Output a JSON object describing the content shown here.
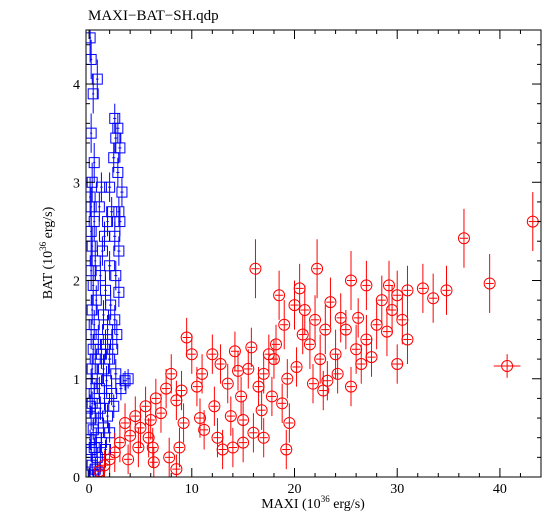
{
  "chart_data": {
    "type": "scatter",
    "title": "MAXI−BAT−SH.qdp",
    "xlabel": {
      "pre": "MAXI (10",
      "sup": "36",
      "post": " erg/s)"
    },
    "ylabel": {
      "pre": "BAT (10",
      "sup": "36",
      "post": " erg/s)"
    },
    "xlim": [
      -0.3,
      44
    ],
    "ylim": [
      0,
      4.55
    ],
    "x_ticks": [
      0,
      10,
      20,
      30,
      40
    ],
    "y_ticks": [
      0,
      1,
      2,
      3,
      4
    ],
    "grid": false,
    "legend": "none",
    "series": [
      {
        "marker": "square",
        "color": "#0000ff",
        "points": [
          [
            0.1,
            4.47,
            0.1,
            0.25
          ],
          [
            0.2,
            4.25,
            0.1,
            0.2
          ],
          [
            0.8,
            4.05,
            0.12,
            0.2
          ],
          [
            0.4,
            3.9,
            0.1,
            0.2
          ],
          [
            0.2,
            3.5,
            0.1,
            0.2
          ],
          [
            2.5,
            3.65,
            0.15,
            0.15
          ],
          [
            2.8,
            3.55,
            0.15,
            0.15
          ],
          [
            2.6,
            3.45,
            0.15,
            0.15
          ],
          [
            3.0,
            3.35,
            0.15,
            0.15
          ],
          [
            2.4,
            3.25,
            0.15,
            0.15
          ],
          [
            2.8,
            3.1,
            0.15,
            0.15
          ],
          [
            0.5,
            3.2,
            0.1,
            0.2
          ],
          [
            0.3,
            3.0,
            0.1,
            0.2
          ],
          [
            1.2,
            2.95,
            0.12,
            0.15
          ],
          [
            2.0,
            2.95,
            0.15,
            0.15
          ],
          [
            3.2,
            2.9,
            0.15,
            0.15
          ],
          [
            0.1,
            2.85,
            0.1,
            0.2
          ],
          [
            0.2,
            2.75,
            0.1,
            0.2
          ],
          [
            1.0,
            2.75,
            0.12,
            0.15
          ],
          [
            2.2,
            2.7,
            0.15,
            0.15
          ],
          [
            2.9,
            2.7,
            0.15,
            0.15
          ],
          [
            0.5,
            2.6,
            0.1,
            0.2
          ],
          [
            1.8,
            2.6,
            0.12,
            0.15
          ],
          [
            3.0,
            2.6,
            0.15,
            0.15
          ],
          [
            0.2,
            2.5,
            0.1,
            0.2
          ],
          [
            1.5,
            2.45,
            0.12,
            0.15
          ],
          [
            2.5,
            2.45,
            0.15,
            0.15
          ],
          [
            0.3,
            2.35,
            0.1,
            0.2
          ],
          [
            1.3,
            2.3,
            0.12,
            0.15
          ],
          [
            2.9,
            2.3,
            0.15,
            0.15
          ],
          [
            0.6,
            2.2,
            0.1,
            0.2
          ],
          [
            2.0,
            2.15,
            0.15,
            0.15
          ],
          [
            0.2,
            2.1,
            0.1,
            0.2
          ],
          [
            1.1,
            2.05,
            0.12,
            0.15
          ],
          [
            2.6,
            2.05,
            0.15,
            0.15
          ],
          [
            0.4,
            1.95,
            0.1,
            0.2
          ],
          [
            1.6,
            1.9,
            0.12,
            0.15
          ],
          [
            2.9,
            1.88,
            0.15,
            0.15
          ],
          [
            0.7,
            1.8,
            0.1,
            0.15
          ],
          [
            2.1,
            1.75,
            0.15,
            0.15
          ],
          [
            0.3,
            1.7,
            0.1,
            0.15
          ],
          [
            1.4,
            1.65,
            0.12,
            0.15
          ],
          [
            2.5,
            1.6,
            0.15,
            0.15
          ],
          [
            0.5,
            1.55,
            0.1,
            0.15
          ],
          [
            1.8,
            1.5,
            0.12,
            0.15
          ],
          [
            0.2,
            1.45,
            0.1,
            0.15
          ],
          [
            2.7,
            1.45,
            0.15,
            0.15
          ],
          [
            0.9,
            1.4,
            0.12,
            0.15
          ],
          [
            1.6,
            1.35,
            0.12,
            0.15
          ],
          [
            0.4,
            1.3,
            0.1,
            0.15
          ],
          [
            2.3,
            1.3,
            0.15,
            0.15
          ],
          [
            1.2,
            1.25,
            0.12,
            0.15
          ],
          [
            0.6,
            1.2,
            0.1,
            0.15
          ],
          [
            2.0,
            1.2,
            0.15,
            0.15
          ],
          [
            1.4,
            1.1,
            0.12,
            0.15
          ],
          [
            0.3,
            1.1,
            0.1,
            0.15
          ],
          [
            2.6,
            1.05,
            0.15,
            0.15
          ],
          [
            0.8,
            1.0,
            0.12,
            0.15
          ],
          [
            1.7,
            0.98,
            0.12,
            0.15
          ],
          [
            0.2,
            0.95,
            0.1,
            0.15
          ],
          [
            3.5,
            0.98,
            0.2,
            0.1
          ],
          [
            3.8,
            1.0,
            0.2,
            0.1
          ],
          [
            3.1,
            0.9,
            0.15,
            0.12
          ],
          [
            1.0,
            0.9,
            0.12,
            0.12
          ],
          [
            2.2,
            0.85,
            0.15,
            0.12
          ],
          [
            0.5,
            0.85,
            0.1,
            0.12
          ],
          [
            1.5,
            0.8,
            0.12,
            0.12
          ],
          [
            0.3,
            0.75,
            0.1,
            0.12
          ],
          [
            2.4,
            0.72,
            0.15,
            0.12
          ],
          [
            1.1,
            0.7,
            0.12,
            0.12
          ],
          [
            0.6,
            0.65,
            0.1,
            0.12
          ],
          [
            1.8,
            0.62,
            0.12,
            0.12
          ],
          [
            0.2,
            0.6,
            0.1,
            0.12
          ],
          [
            0.9,
            0.55,
            0.1,
            0.12
          ],
          [
            1.4,
            0.5,
            0.12,
            0.1
          ],
          [
            0.4,
            0.48,
            0.1,
            0.1
          ],
          [
            2.0,
            0.45,
            0.15,
            0.1
          ],
          [
            0.7,
            0.4,
            0.1,
            0.1
          ],
          [
            0.1,
            0.38,
            0.1,
            0.1
          ],
          [
            1.2,
            0.35,
            0.12,
            0.1
          ],
          [
            0.5,
            0.3,
            0.1,
            0.1
          ],
          [
            1.6,
            0.28,
            0.12,
            0.1
          ],
          [
            0.2,
            0.25,
            0.1,
            0.1
          ],
          [
            0.8,
            0.2,
            0.1,
            0.1
          ],
          [
            1.1,
            0.15,
            0.1,
            0.1
          ],
          [
            0.3,
            0.12,
            0.1,
            0.1
          ],
          [
            0.6,
            0.08,
            0.1,
            0.08
          ],
          [
            0.1,
            0.05,
            0.1,
            0.08
          ],
          [
            0.9,
            0.03,
            0.1,
            0.05
          ],
          [
            0.4,
            0.02,
            0.1,
            0.05
          ],
          [
            0.2,
            0.28,
            0.1,
            0.1
          ],
          [
            0.1,
            0.72,
            0.1,
            0.12
          ]
        ]
      },
      {
        "marker": "circle-cross",
        "color": "#ff0000",
        "points": [
          [
            43.2,
            2.6,
            0.4,
            0.3
          ],
          [
            36.5,
            2.43,
            0.4,
            0.3
          ],
          [
            39.0,
            1.97,
            0.4,
            0.3
          ],
          [
            40.7,
            1.13,
            1.3,
            0.12
          ],
          [
            30.0,
            1.15,
            0.5,
            0.2
          ],
          [
            16.2,
            2.12,
            0.4,
            0.3
          ],
          [
            22.2,
            2.12,
            0.4,
            0.3
          ],
          [
            25.5,
            2.0,
            0.4,
            0.3
          ],
          [
            27.0,
            1.95,
            0.4,
            0.25
          ],
          [
            28.5,
            1.8,
            0.4,
            0.25
          ],
          [
            29.2,
            1.95,
            0.4,
            0.25
          ],
          [
            30.0,
            1.85,
            0.4,
            0.25
          ],
          [
            31.0,
            1.9,
            0.4,
            0.25
          ],
          [
            32.5,
            1.92,
            0.4,
            0.25
          ],
          [
            33.5,
            1.82,
            0.4,
            0.25
          ],
          [
            34.8,
            1.9,
            0.4,
            0.25
          ],
          [
            29.5,
            1.7,
            0.4,
            0.25
          ],
          [
            30.5,
            1.6,
            0.4,
            0.25
          ],
          [
            31.0,
            1.4,
            0.4,
            0.25
          ],
          [
            29.0,
            1.48,
            0.4,
            0.25
          ],
          [
            28.0,
            1.55,
            0.4,
            0.25
          ],
          [
            27.0,
            1.4,
            0.4,
            0.25
          ],
          [
            26.0,
            1.3,
            0.4,
            0.25
          ],
          [
            25.5,
            0.92,
            0.4,
            0.2
          ],
          [
            24.0,
            1.25,
            0.4,
            0.25
          ],
          [
            23.0,
            1.5,
            0.4,
            0.25
          ],
          [
            22.0,
            1.6,
            0.4,
            0.25
          ],
          [
            21.0,
            1.7,
            0.4,
            0.25
          ],
          [
            20.0,
            1.75,
            0.4,
            0.25
          ],
          [
            19.0,
            1.55,
            0.4,
            0.25
          ],
          [
            18.5,
            1.85,
            0.4,
            0.25
          ],
          [
            20.5,
            1.92,
            0.4,
            0.25
          ],
          [
            23.5,
            1.78,
            0.4,
            0.25
          ],
          [
            24.5,
            1.62,
            0.4,
            0.25
          ],
          [
            21.5,
            1.35,
            0.4,
            0.25
          ],
          [
            22.5,
            1.2,
            0.4,
            0.25
          ],
          [
            20.2,
            1.12,
            0.4,
            0.2
          ],
          [
            19.3,
            1.0,
            0.4,
            0.2
          ],
          [
            18.0,
            1.2,
            0.4,
            0.2
          ],
          [
            17.0,
            1.05,
            0.4,
            0.2
          ],
          [
            16.5,
            0.92,
            0.4,
            0.2
          ],
          [
            15.5,
            1.1,
            0.4,
            0.2
          ],
          [
            14.8,
            0.82,
            0.4,
            0.2
          ],
          [
            13.5,
            0.95,
            0.4,
            0.2
          ],
          [
            14.2,
            1.28,
            0.4,
            0.2
          ],
          [
            12.0,
            1.25,
            0.4,
            0.2
          ],
          [
            12.8,
            1.15,
            0.4,
            0.2
          ],
          [
            11.0,
            1.05,
            0.4,
            0.2
          ],
          [
            10.5,
            0.92,
            0.4,
            0.2
          ],
          [
            10.0,
            1.25,
            0.4,
            0.2
          ],
          [
            9.5,
            1.42,
            0.4,
            0.2
          ],
          [
            9.0,
            0.88,
            0.4,
            0.2
          ],
          [
            8.5,
            0.78,
            0.4,
            0.2
          ],
          [
            8.0,
            1.05,
            0.4,
            0.2
          ],
          [
            7.5,
            0.9,
            0.4,
            0.2
          ],
          [
            7.0,
            0.65,
            0.4,
            0.2
          ],
          [
            6.5,
            0.8,
            0.4,
            0.2
          ],
          [
            6.0,
            0.58,
            0.4,
            0.2
          ],
          [
            5.5,
            0.72,
            0.4,
            0.2
          ],
          [
            5.0,
            0.5,
            0.4,
            0.2
          ],
          [
            4.5,
            0.62,
            0.4,
            0.2
          ],
          [
            4.0,
            0.42,
            0.4,
            0.2
          ],
          [
            3.5,
            0.55,
            0.4,
            0.2
          ],
          [
            3.0,
            0.35,
            0.4,
            0.2
          ],
          [
            2.5,
            0.25,
            0.4,
            0.2
          ],
          [
            2.0,
            0.18,
            0.4,
            0.15
          ],
          [
            1.5,
            0.12,
            0.4,
            0.15
          ],
          [
            1.0,
            0.06,
            0.3,
            0.1
          ],
          [
            9.2,
            0.55,
            0.4,
            0.2
          ],
          [
            10.8,
            0.6,
            0.4,
            0.2
          ],
          [
            12.2,
            0.72,
            0.4,
            0.2
          ],
          [
            13.8,
            0.62,
            0.4,
            0.2
          ],
          [
            15.0,
            0.58,
            0.4,
            0.2
          ],
          [
            16.8,
            0.68,
            0.4,
            0.2
          ],
          [
            17.8,
            0.82,
            0.4,
            0.2
          ],
          [
            18.8,
            0.75,
            0.4,
            0.2
          ],
          [
            6.2,
            0.3,
            0.4,
            0.2
          ],
          [
            7.8,
            0.2,
            0.4,
            0.2
          ],
          [
            8.5,
            0.08,
            0.4,
            0.15
          ],
          [
            6.3,
            0.15,
            0.4,
            0.15
          ],
          [
            5.8,
            0.4,
            0.4,
            0.2
          ],
          [
            4.8,
            0.3,
            0.4,
            0.2
          ],
          [
            3.8,
            0.18,
            0.4,
            0.15
          ],
          [
            16.0,
            0.45,
            0.4,
            0.2
          ],
          [
            15.0,
            0.35,
            0.4,
            0.2
          ],
          [
            17.0,
            0.4,
            0.4,
            0.2
          ],
          [
            19.5,
            0.55,
            0.4,
            0.2
          ],
          [
            14.0,
            0.3,
            0.4,
            0.2
          ],
          [
            19.2,
            0.28,
            0.4,
            0.2
          ],
          [
            8.8,
            0.3,
            0.4,
            0.2
          ],
          [
            11.2,
            0.48,
            0.4,
            0.2
          ],
          [
            12.5,
            0.4,
            0.4,
            0.2
          ],
          [
            13.0,
            0.28,
            0.4,
            0.2
          ],
          [
            21.8,
            0.95,
            0.4,
            0.2
          ],
          [
            23.2,
            0.98,
            0.4,
            0.2
          ],
          [
            24.2,
            1.05,
            0.4,
            0.2
          ],
          [
            26.5,
            1.15,
            0.4,
            0.2
          ],
          [
            27.5,
            1.22,
            0.4,
            0.2
          ],
          [
            22.8,
            0.88,
            0.4,
            0.2
          ],
          [
            18.2,
            1.35,
            0.4,
            0.2
          ],
          [
            20.8,
            1.45,
            0.4,
            0.2
          ],
          [
            25.0,
            1.5,
            0.4,
            0.2
          ],
          [
            26.2,
            1.62,
            0.4,
            0.2
          ],
          [
            17.5,
            1.25,
            0.4,
            0.2
          ],
          [
            14.5,
            1.08,
            0.4,
            0.2
          ],
          [
            15.8,
            1.32,
            0.4,
            0.2
          ]
        ]
      }
    ]
  }
}
